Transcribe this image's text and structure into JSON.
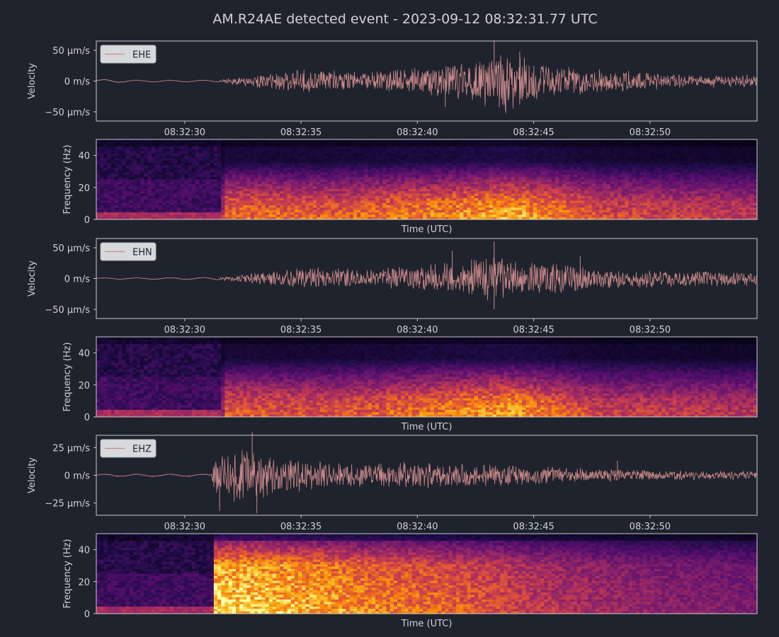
{
  "figure": {
    "title": "AM.R24AE detected event - 2023-09-12 08:32:31.77 UTC",
    "background": "#1f232d",
    "text_color": "#d0d2d6",
    "axes_edge_color": "#c8cad0",
    "trace_color": "#c9898a"
  },
  "chart_data": [
    {
      "type": "line",
      "channel": "EHE",
      "legend": "EHE",
      "legend_position": "top-left",
      "ylabel": "Velocity",
      "xlim": [
        "08:32:26.2",
        "08:32:54.6"
      ],
      "ylim": [
        -65,
        65
      ],
      "yticks": [
        50,
        0,
        -50
      ],
      "ytick_labels": [
        "50 µm/s",
        "0 m/s",
        "−50 µm/s"
      ],
      "xticks": [
        "08:32:30",
        "08:32:35",
        "08:32:40",
        "08:32:45",
        "08:32:50"
      ],
      "onset": "08:32:31.5",
      "envelope": [
        [
          26.2,
          4
        ],
        [
          28,
          2
        ],
        [
          31.5,
          2
        ],
        [
          32.5,
          8
        ],
        [
          34,
          18
        ],
        [
          36,
          20
        ],
        [
          38,
          17
        ],
        [
          40,
          24
        ],
        [
          41.5,
          33
        ],
        [
          42.5,
          40
        ],
        [
          43.5,
          55
        ],
        [
          44.5,
          45
        ],
        [
          46,
          28
        ],
        [
          48,
          20
        ],
        [
          50,
          16
        ],
        [
          52,
          12
        ],
        [
          54.6,
          10
        ]
      ],
      "peaks": [
        [
          "08:32:43.3",
          66
        ],
        [
          "08:32:43.8",
          -52
        ],
        [
          "08:32:44.4",
          48
        ],
        [
          "08:32:41.2",
          -42
        ]
      ]
    },
    {
      "type": "heatmap",
      "channel": "EHE",
      "ylabel": "Frequency (Hz)",
      "xlabel": "Time (UTC)",
      "ylim": [
        0,
        50
      ],
      "yticks": [
        0,
        20,
        40
      ],
      "colormap": "inferno",
      "onset": "08:32:31.5",
      "energy_bands_hz": [
        [
          2,
          12
        ]
      ],
      "energy_profile": [
        [
          26.2,
          0.15
        ],
        [
          31.4,
          0.15
        ],
        [
          31.8,
          0.7
        ],
        [
          36,
          0.65
        ],
        [
          41,
          0.75
        ],
        [
          44,
          0.85
        ],
        [
          48,
          0.6
        ],
        [
          54.6,
          0.5
        ]
      ]
    },
    {
      "type": "line",
      "channel": "EHN",
      "legend": "EHN",
      "legend_position": "top-left",
      "ylabel": "Velocity",
      "xlim": [
        "08:32:26.2",
        "08:32:54.6"
      ],
      "ylim": [
        -65,
        65
      ],
      "yticks": [
        50,
        0,
        -50
      ],
      "ytick_labels": [
        "50 µm/s",
        "0 m/s",
        "−50 µm/s"
      ],
      "xticks": [
        "08:32:30",
        "08:32:35",
        "08:32:40",
        "08:32:45",
        "08:32:50"
      ],
      "onset": "08:32:31.5",
      "envelope": [
        [
          26.2,
          1.5
        ],
        [
          30,
          2
        ],
        [
          31.5,
          3
        ],
        [
          32.5,
          8
        ],
        [
          34,
          15
        ],
        [
          36,
          20
        ],
        [
          38,
          16
        ],
        [
          40,
          25
        ],
        [
          41.5,
          30
        ],
        [
          43,
          40
        ],
        [
          44.5,
          32
        ],
        [
          46,
          28
        ],
        [
          48,
          18
        ],
        [
          50,
          16
        ],
        [
          52,
          14
        ],
        [
          54.6,
          12
        ]
      ],
      "peaks": [
        [
          "08:32:43.3",
          60
        ],
        [
          "08:32:43.3",
          -50
        ],
        [
          "08:32:41.5",
          45
        ],
        [
          "08:32:47",
          36
        ]
      ]
    },
    {
      "type": "heatmap",
      "channel": "EHN",
      "ylabel": "Frequency (Hz)",
      "xlabel": "Time (UTC)",
      "ylim": [
        0,
        50
      ],
      "yticks": [
        0,
        20,
        40
      ],
      "colormap": "inferno",
      "onset": "08:32:31.5",
      "energy_bands_hz": [
        [
          2,
          12
        ]
      ],
      "energy_profile": [
        [
          26.2,
          0.15
        ],
        [
          31.4,
          0.15
        ],
        [
          31.8,
          0.65
        ],
        [
          36,
          0.6
        ],
        [
          40,
          0.7
        ],
        [
          44,
          0.8
        ],
        [
          48,
          0.55
        ],
        [
          54.6,
          0.5
        ]
      ]
    },
    {
      "type": "line",
      "channel": "EHZ",
      "legend": "EHZ",
      "legend_position": "top-left",
      "ylabel": "Velocity",
      "xlim": [
        "08:32:26.2",
        "08:32:54.6"
      ],
      "ylim": [
        -36,
        36
      ],
      "yticks": [
        25,
        0,
        -25
      ],
      "ytick_labels": [
        "25 µm/s",
        "0 m/s",
        "−25 µm/s"
      ],
      "xticks": [
        "08:32:30",
        "08:32:35",
        "08:32:40",
        "08:32:45",
        "08:32:50"
      ],
      "onset": "08:32:31.2",
      "envelope": [
        [
          26.2,
          1.5
        ],
        [
          31.1,
          1.5
        ],
        [
          31.3,
          24
        ],
        [
          32.5,
          25
        ],
        [
          33.5,
          22
        ],
        [
          35,
          15
        ],
        [
          38,
          12
        ],
        [
          42,
          12
        ],
        [
          44,
          11
        ],
        [
          46,
          8
        ],
        [
          50,
          5
        ],
        [
          54.6,
          4
        ]
      ],
      "peaks": [
        [
          "08:32:32.9",
          39
        ],
        [
          "08:32:33.1",
          -34
        ],
        [
          "08:32:31.5",
          -32
        ],
        [
          "08:32:48.6",
          13
        ]
      ]
    },
    {
      "type": "heatmap",
      "channel": "EHZ",
      "ylabel": "Frequency (Hz)",
      "xlabel": "Time (UTC)",
      "ylim": [
        0,
        50
      ],
      "yticks": [
        0,
        20,
        40
      ],
      "colormap": "inferno",
      "onset": "08:32:31.2",
      "energy_bands_hz": [
        [
          2,
          30
        ]
      ],
      "energy_profile": [
        [
          26.2,
          0.15
        ],
        [
          30.9,
          0.15
        ],
        [
          31.3,
          0.95
        ],
        [
          34,
          0.9
        ],
        [
          38,
          0.75
        ],
        [
          42,
          0.65
        ],
        [
          46,
          0.5
        ],
        [
          50,
          0.4
        ],
        [
          54.6,
          0.35
        ]
      ]
    }
  ]
}
